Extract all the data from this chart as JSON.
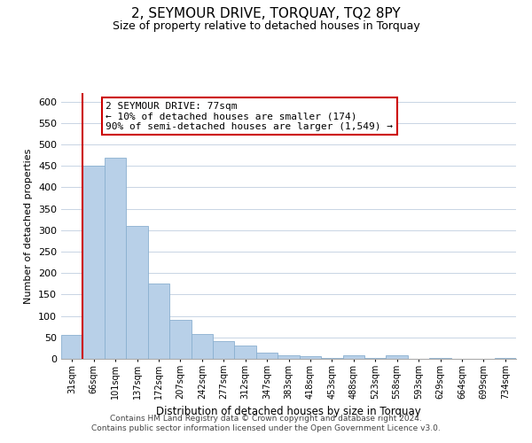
{
  "title": "2, SEYMOUR DRIVE, TORQUAY, TQ2 8PY",
  "subtitle": "Size of property relative to detached houses in Torquay",
  "xlabel": "Distribution of detached houses by size in Torquay",
  "ylabel": "Number of detached properties",
  "bar_labels": [
    "31sqm",
    "66sqm",
    "101sqm",
    "137sqm",
    "172sqm",
    "207sqm",
    "242sqm",
    "277sqm",
    "312sqm",
    "347sqm",
    "383sqm",
    "418sqm",
    "453sqm",
    "488sqm",
    "523sqm",
    "558sqm",
    "593sqm",
    "629sqm",
    "664sqm",
    "699sqm",
    "734sqm"
  ],
  "bar_values": [
    55,
    450,
    470,
    310,
    175,
    90,
    58,
    42,
    32,
    15,
    8,
    7,
    2,
    8,
    2,
    9,
    1,
    2,
    0,
    1,
    2
  ],
  "bar_color": "#b8d0e8",
  "bar_edge_color": "#8ab0d0",
  "vline_color": "#cc0000",
  "ylim": [
    0,
    620
  ],
  "yticks": [
    0,
    50,
    100,
    150,
    200,
    250,
    300,
    350,
    400,
    450,
    500,
    550,
    600
  ],
  "annotation_title": "2 SEYMOUR DRIVE: 77sqm",
  "annotation_line1": "← 10% of detached houses are smaller (174)",
  "annotation_line2": "90% of semi-detached houses are larger (1,549) →",
  "annotation_box_color": "#ffffff",
  "annotation_box_edge": "#cc0000",
  "footer_line1": "Contains HM Land Registry data © Crown copyright and database right 2024.",
  "footer_line2": "Contains public sector information licensed under the Open Government Licence v3.0.",
  "background_color": "#ffffff",
  "grid_color": "#c8d4e4"
}
